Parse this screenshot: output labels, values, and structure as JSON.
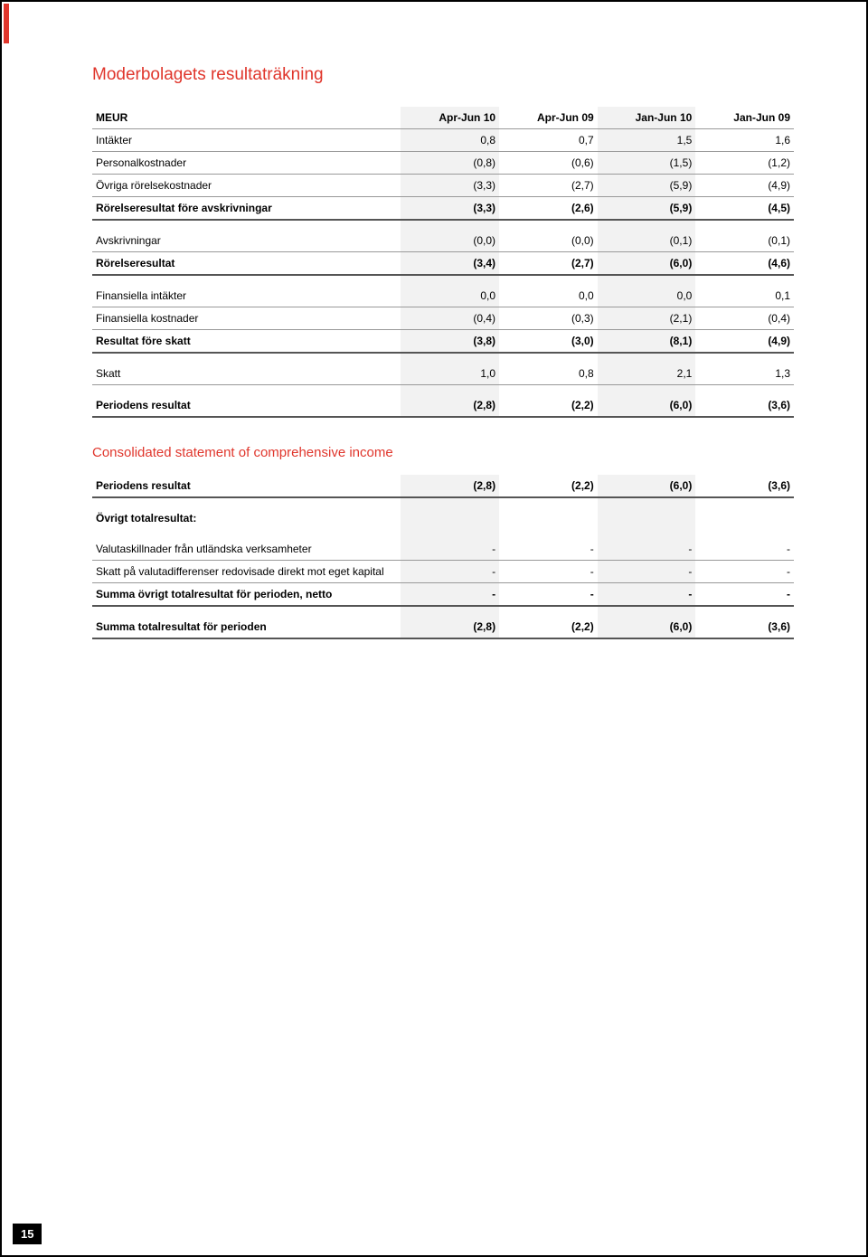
{
  "pageNumber": "15",
  "title1": "Moderbolagets resultaträkning",
  "title2": "Consolidated statement of comprehensive income",
  "columns": [
    "MEUR",
    "Apr-Jun 10",
    "Apr-Jun 09",
    "Jan-Jun 10",
    "Jan-Jun 09"
  ],
  "t1": {
    "rows": [
      {
        "l": "Intäkter",
        "v": [
          "0,8",
          "0,7",
          "1,5",
          "1,6"
        ],
        "cls": "thin-bottom"
      },
      {
        "l": "Personalkostnader",
        "v": [
          "(0,8)",
          "(0,6)",
          "(1,5)",
          "(1,2)"
        ],
        "cls": "thin-bottom"
      },
      {
        "l": "Övriga rörelsekostnader",
        "v": [
          "(3,3)",
          "(2,7)",
          "(5,9)",
          "(4,9)"
        ],
        "cls": "thin-bottom"
      },
      {
        "l": "Rörelseresultat före avskrivningar",
        "v": [
          "(3,3)",
          "(2,6)",
          "(5,9)",
          "(4,5)"
        ],
        "cls": "thick-bottom",
        "bold": true
      },
      {
        "l": "",
        "v": [
          "",
          "",
          "",
          ""
        ],
        "cls": "spacer"
      },
      {
        "l": "Avskrivningar",
        "v": [
          "(0,0)",
          "(0,0)",
          "(0,1)",
          "(0,1)"
        ],
        "cls": "thin-bottom"
      },
      {
        "l": "Rörelseresultat",
        "v": [
          "(3,4)",
          "(2,7)",
          "(6,0)",
          "(4,6)"
        ],
        "cls": "thick-bottom",
        "bold": true
      },
      {
        "l": "",
        "v": [
          "",
          "",
          "",
          ""
        ],
        "cls": "spacer"
      },
      {
        "l": "Finansiella intäkter",
        "v": [
          "0,0",
          "0,0",
          "0,0",
          "0,1"
        ],
        "cls": "thin-bottom"
      },
      {
        "l": "Finansiella kostnader",
        "v": [
          "(0,4)",
          "(0,3)",
          "(2,1)",
          "(0,4)"
        ],
        "cls": "thin-bottom"
      },
      {
        "l": "Resultat före skatt",
        "v": [
          "(3,8)",
          "(3,0)",
          "(8,1)",
          "(4,9)"
        ],
        "cls": "thick-bottom",
        "bold": true
      },
      {
        "l": "",
        "v": [
          "",
          "",
          "",
          ""
        ],
        "cls": "spacer"
      },
      {
        "l": "Skatt",
        "v": [
          "1,0",
          "0,8",
          "2,1",
          "1,3"
        ],
        "cls": "thin-bottom"
      },
      {
        "l": "",
        "v": [
          "",
          "",
          "",
          ""
        ],
        "cls": "spacer"
      },
      {
        "l": "Periodens resultat",
        "v": [
          "(2,8)",
          "(2,2)",
          "(6,0)",
          "(3,6)"
        ],
        "cls": "thick-bottom",
        "bold": true
      }
    ]
  },
  "t2": {
    "rows": [
      {
        "l": "Periodens resultat",
        "v": [
          "(2,8)",
          "(2,2)",
          "(6,0)",
          "(3,6)"
        ],
        "cls": "thick-bottom",
        "bold": true
      },
      {
        "l": "",
        "v": [
          "",
          "",
          "",
          ""
        ],
        "cls": "spacer"
      },
      {
        "l": "Övrigt totalresultat:",
        "v": [
          "",
          "",
          "",
          ""
        ],
        "cls": "",
        "bold": true
      },
      {
        "l": "",
        "v": [
          "",
          "",
          "",
          ""
        ],
        "cls": "spacer"
      },
      {
        "l": "Valutaskillnader från utländska verksamheter",
        "v": [
          "-",
          "-",
          "-",
          "-"
        ],
        "cls": "thin-bottom"
      },
      {
        "l": "Skatt på valutadifferenser redovisade direkt mot eget kapital",
        "v": [
          "-",
          "-",
          "-",
          "-"
        ],
        "cls": "thin-bottom"
      },
      {
        "l": "Summa övrigt totalresultat för perioden, netto",
        "v": [
          "-",
          "-",
          "-",
          "-"
        ],
        "cls": "thick-bottom",
        "bold": true
      },
      {
        "l": "",
        "v": [
          "",
          "",
          "",
          ""
        ],
        "cls": "spacer"
      },
      {
        "l": "Summa totalresultat för perioden",
        "v": [
          "(2,8)",
          "(2,2)",
          "(6,0)",
          "(3,6)"
        ],
        "cls": "thick-bottom",
        "bold": true
      }
    ]
  }
}
